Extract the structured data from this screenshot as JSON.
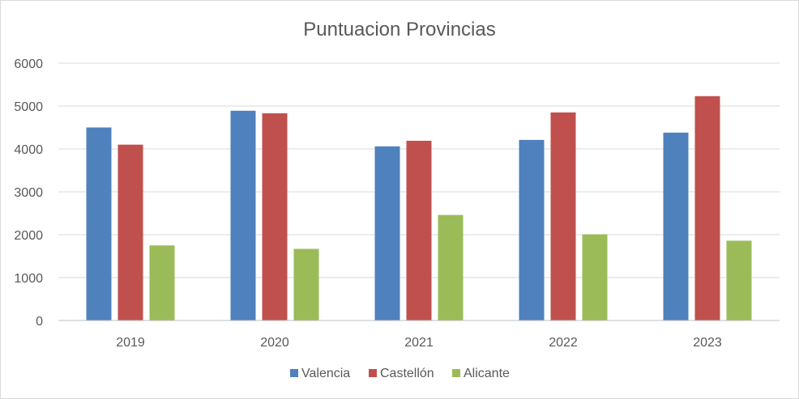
{
  "chart_data": {
    "type": "bar",
    "title": "Puntuacion Provincias",
    "xlabel": "",
    "ylabel": "",
    "categories": [
      "2019",
      "2020",
      "2021",
      "2022",
      "2023"
    ],
    "series": [
      {
        "name": "Valencia",
        "color": "#4f81bd",
        "values": [
          4500,
          4890,
          4060,
          4210,
          4380
        ]
      },
      {
        "name": "Castellón",
        "color": "#c0504d",
        "values": [
          4100,
          4830,
          4190,
          4850,
          5230
        ]
      },
      {
        "name": "Alicante",
        "color": "#9bbb59",
        "values": [
          1750,
          1670,
          2460,
          2010,
          1860
        ]
      }
    ],
    "ylim": [
      0,
      6000
    ],
    "yticks": [
      "0",
      "1000",
      "2000",
      "3000",
      "4000",
      "5000",
      "6000"
    ],
    "grid": true,
    "legend_position": "bottom"
  }
}
